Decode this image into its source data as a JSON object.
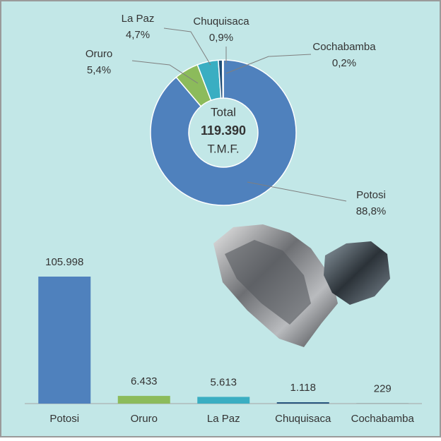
{
  "chart_data": [
    {
      "type": "doughnut",
      "categories": [
        "Potosi",
        "Oruro",
        "La Paz",
        "Chuquisaca",
        "Cochabamba"
      ],
      "values": [
        88.8,
        5.4,
        4.7,
        0.9,
        0.2
      ],
      "value_labels": [
        "88,8%",
        "5,4%",
        "4,7%",
        "0,9%",
        "0,2%"
      ],
      "colors": [
        "#4f81bd",
        "#8cbb5b",
        "#3aaec2",
        "#1f4e79",
        "#7f7f7f"
      ],
      "center_title": "Total",
      "center_value": "119.390",
      "center_unit": "T.M.F."
    },
    {
      "type": "bar",
      "categories": [
        "Potosi",
        "Oruro",
        "La Paz",
        "Chuquisaca",
        "Cochabamba"
      ],
      "values": [
        105998,
        6433,
        5613,
        1118,
        229
      ],
      "value_labels": [
        "105.998",
        "6.433",
        "5.613",
        "1.118",
        "229"
      ],
      "colors": [
        "#4f81bd",
        "#8cbb5b",
        "#3aaec2",
        "#1f4e79",
        "#7f7f7f"
      ]
    }
  ]
}
